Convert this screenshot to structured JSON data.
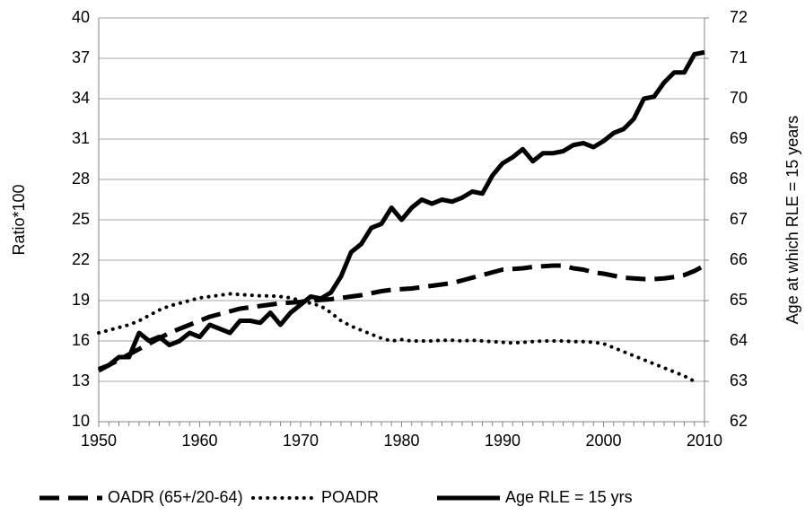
{
  "chart_data": {
    "type": "line",
    "y_label": "Ratio*100",
    "y2_label": "Age at which RLE = 15 years",
    "x": [
      1950,
      1951,
      1952,
      1953,
      1954,
      1955,
      1956,
      1957,
      1958,
      1959,
      1960,
      1961,
      1962,
      1963,
      1964,
      1965,
      1966,
      1967,
      1968,
      1969,
      1970,
      1971,
      1972,
      1973,
      1974,
      1975,
      1976,
      1977,
      1978,
      1979,
      1980,
      1981,
      1982,
      1983,
      1984,
      1985,
      1986,
      1987,
      1988,
      1989,
      1990,
      1991,
      1992,
      1993,
      1994,
      1995,
      1996,
      1997,
      1998,
      1999,
      2000,
      2001,
      2002,
      2003,
      2004,
      2005,
      2006,
      2007,
      2008,
      2009,
      2010
    ],
    "xlim": [
      1950,
      2010
    ],
    "xticks": [
      1950,
      1960,
      1970,
      1980,
      1990,
      2000,
      2010
    ],
    "ylim": [
      10,
      40
    ],
    "yticks": [
      10,
      13,
      16,
      19,
      22,
      25,
      28,
      31,
      34,
      37,
      40
    ],
    "y2lim": [
      62,
      72
    ],
    "y2ticks": [
      62,
      63,
      64,
      65,
      66,
      67,
      68,
      69,
      70,
      71,
      72
    ],
    "grid": true,
    "series": [
      {
        "name": "OADR (65+/20-64)",
        "color": "#000000",
        "dash": "dashed",
        "values": [
          13.8,
          14.2,
          14.6,
          15.0,
          15.4,
          15.8,
          16.2,
          16.6,
          16.9,
          17.2,
          17.5,
          17.8,
          18.0,
          18.2,
          18.4,
          18.5,
          18.6,
          18.7,
          18.8,
          18.85,
          18.9,
          19.0,
          19.05,
          19.1,
          19.2,
          19.3,
          19.4,
          19.55,
          19.7,
          19.8,
          19.85,
          19.9,
          20.0,
          20.1,
          20.2,
          20.3,
          20.5,
          20.7,
          20.9,
          21.1,
          21.3,
          21.35,
          21.4,
          21.5,
          21.55,
          21.6,
          21.6,
          21.4,
          21.3,
          21.1,
          21.0,
          20.85,
          20.7,
          20.65,
          20.6,
          20.6,
          20.65,
          20.75,
          20.9,
          21.2,
          21.6
        ]
      },
      {
        "name": "POADR",
        "color": "#000000",
        "dash": "dotted",
        "values": [
          16.6,
          16.8,
          17.0,
          17.2,
          17.5,
          17.9,
          18.3,
          18.6,
          18.8,
          19.0,
          19.2,
          19.3,
          19.4,
          19.5,
          19.45,
          19.4,
          19.35,
          19.35,
          19.3,
          19.2,
          19.0,
          18.8,
          18.6,
          18.1,
          17.5,
          17.1,
          16.8,
          16.5,
          16.2,
          16.0,
          16.1,
          16.0,
          16.0,
          16.0,
          16.05,
          16.05,
          16.0,
          16.05,
          16.0,
          15.95,
          15.9,
          15.85,
          15.9,
          15.95,
          16.0,
          16.0,
          16.0,
          15.95,
          15.95,
          15.9,
          15.8,
          15.5,
          15.2,
          14.9,
          14.6,
          14.3,
          14.0,
          13.7,
          13.4,
          13.0,
          null
        ]
      },
      {
        "name": "Age RLE = 15 yrs",
        "color": "#000000",
        "dash": "solid",
        "axis": "y2",
        "values": [
          63.3,
          63.4,
          63.6,
          63.6,
          64.2,
          64.0,
          64.1,
          63.9,
          64.0,
          64.2,
          64.1,
          64.4,
          64.3,
          64.2,
          64.5,
          64.5,
          64.45,
          64.7,
          64.4,
          64.7,
          64.9,
          65.1,
          65.05,
          65.2,
          65.6,
          66.2,
          66.4,
          66.8,
          66.9,
          67.3,
          67.0,
          67.3,
          67.5,
          67.4,
          67.5,
          67.45,
          67.55,
          67.7,
          67.65,
          68.1,
          68.4,
          68.55,
          68.75,
          68.45,
          68.65,
          68.65,
          68.7,
          68.85,
          68.9,
          68.8,
          68.95,
          69.15,
          69.25,
          69.5,
          70.0,
          70.05,
          70.4,
          70.65,
          70.65,
          71.1,
          71.15
        ]
      }
    ]
  }
}
